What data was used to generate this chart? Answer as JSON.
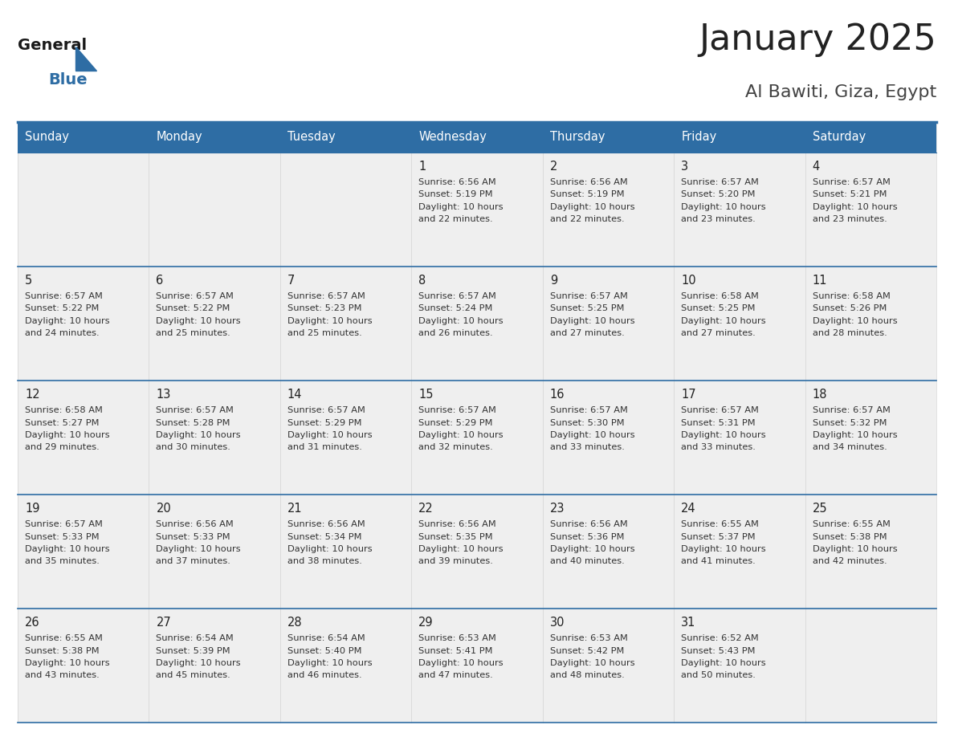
{
  "title": "January 2025",
  "subtitle": "Al Bawiti, Giza, Egypt",
  "header_bg_color": "#2E6DA4",
  "header_text_color": "#FFFFFF",
  "cell_bg_color": "#EFEFEF",
  "title_color": "#222222",
  "subtitle_color": "#444444",
  "day_names": [
    "Sunday",
    "Monday",
    "Tuesday",
    "Wednesday",
    "Thursday",
    "Friday",
    "Saturday"
  ],
  "days": [
    {
      "day": 1,
      "col": 3,
      "row": 0,
      "sunrise": "6:56 AM",
      "sunset": "5:19 PM",
      "daylight": "10 hours and 22 minutes."
    },
    {
      "day": 2,
      "col": 4,
      "row": 0,
      "sunrise": "6:56 AM",
      "sunset": "5:19 PM",
      "daylight": "10 hours and 22 minutes."
    },
    {
      "day": 3,
      "col": 5,
      "row": 0,
      "sunrise": "6:57 AM",
      "sunset": "5:20 PM",
      "daylight": "10 hours and 23 minutes."
    },
    {
      "day": 4,
      "col": 6,
      "row": 0,
      "sunrise": "6:57 AM",
      "sunset": "5:21 PM",
      "daylight": "10 hours and 23 minutes."
    },
    {
      "day": 5,
      "col": 0,
      "row": 1,
      "sunrise": "6:57 AM",
      "sunset": "5:22 PM",
      "daylight": "10 hours and 24 minutes."
    },
    {
      "day": 6,
      "col": 1,
      "row": 1,
      "sunrise": "6:57 AM",
      "sunset": "5:22 PM",
      "daylight": "10 hours and 25 minutes."
    },
    {
      "day": 7,
      "col": 2,
      "row": 1,
      "sunrise": "6:57 AM",
      "sunset": "5:23 PM",
      "daylight": "10 hours and 25 minutes."
    },
    {
      "day": 8,
      "col": 3,
      "row": 1,
      "sunrise": "6:57 AM",
      "sunset": "5:24 PM",
      "daylight": "10 hours and 26 minutes."
    },
    {
      "day": 9,
      "col": 4,
      "row": 1,
      "sunrise": "6:57 AM",
      "sunset": "5:25 PM",
      "daylight": "10 hours and 27 minutes."
    },
    {
      "day": 10,
      "col": 5,
      "row": 1,
      "sunrise": "6:58 AM",
      "sunset": "5:25 PM",
      "daylight": "10 hours and 27 minutes."
    },
    {
      "day": 11,
      "col": 6,
      "row": 1,
      "sunrise": "6:58 AM",
      "sunset": "5:26 PM",
      "daylight": "10 hours and 28 minutes."
    },
    {
      "day": 12,
      "col": 0,
      "row": 2,
      "sunrise": "6:58 AM",
      "sunset": "5:27 PM",
      "daylight": "10 hours and 29 minutes."
    },
    {
      "day": 13,
      "col": 1,
      "row": 2,
      "sunrise": "6:57 AM",
      "sunset": "5:28 PM",
      "daylight": "10 hours and 30 minutes."
    },
    {
      "day": 14,
      "col": 2,
      "row": 2,
      "sunrise": "6:57 AM",
      "sunset": "5:29 PM",
      "daylight": "10 hours and 31 minutes."
    },
    {
      "day": 15,
      "col": 3,
      "row": 2,
      "sunrise": "6:57 AM",
      "sunset": "5:29 PM",
      "daylight": "10 hours and 32 minutes."
    },
    {
      "day": 16,
      "col": 4,
      "row": 2,
      "sunrise": "6:57 AM",
      "sunset": "5:30 PM",
      "daylight": "10 hours and 33 minutes."
    },
    {
      "day": 17,
      "col": 5,
      "row": 2,
      "sunrise": "6:57 AM",
      "sunset": "5:31 PM",
      "daylight": "10 hours and 33 minutes."
    },
    {
      "day": 18,
      "col": 6,
      "row": 2,
      "sunrise": "6:57 AM",
      "sunset": "5:32 PM",
      "daylight": "10 hours and 34 minutes."
    },
    {
      "day": 19,
      "col": 0,
      "row": 3,
      "sunrise": "6:57 AM",
      "sunset": "5:33 PM",
      "daylight": "10 hours and 35 minutes."
    },
    {
      "day": 20,
      "col": 1,
      "row": 3,
      "sunrise": "6:56 AM",
      "sunset": "5:33 PM",
      "daylight": "10 hours and 37 minutes."
    },
    {
      "day": 21,
      "col": 2,
      "row": 3,
      "sunrise": "6:56 AM",
      "sunset": "5:34 PM",
      "daylight": "10 hours and 38 minutes."
    },
    {
      "day": 22,
      "col": 3,
      "row": 3,
      "sunrise": "6:56 AM",
      "sunset": "5:35 PM",
      "daylight": "10 hours and 39 minutes."
    },
    {
      "day": 23,
      "col": 4,
      "row": 3,
      "sunrise": "6:56 AM",
      "sunset": "5:36 PM",
      "daylight": "10 hours and 40 minutes."
    },
    {
      "day": 24,
      "col": 5,
      "row": 3,
      "sunrise": "6:55 AM",
      "sunset": "5:37 PM",
      "daylight": "10 hours and 41 minutes."
    },
    {
      "day": 25,
      "col": 6,
      "row": 3,
      "sunrise": "6:55 AM",
      "sunset": "5:38 PM",
      "daylight": "10 hours and 42 minutes."
    },
    {
      "day": 26,
      "col": 0,
      "row": 4,
      "sunrise": "6:55 AM",
      "sunset": "5:38 PM",
      "daylight": "10 hours and 43 minutes."
    },
    {
      "day": 27,
      "col": 1,
      "row": 4,
      "sunrise": "6:54 AM",
      "sunset": "5:39 PM",
      "daylight": "10 hours and 45 minutes."
    },
    {
      "day": 28,
      "col": 2,
      "row": 4,
      "sunrise": "6:54 AM",
      "sunset": "5:40 PM",
      "daylight": "10 hours and 46 minutes."
    },
    {
      "day": 29,
      "col": 3,
      "row": 4,
      "sunrise": "6:53 AM",
      "sunset": "5:41 PM",
      "daylight": "10 hours and 47 minutes."
    },
    {
      "day": 30,
      "col": 4,
      "row": 4,
      "sunrise": "6:53 AM",
      "sunset": "5:42 PM",
      "daylight": "10 hours and 48 minutes."
    },
    {
      "day": 31,
      "col": 5,
      "row": 4,
      "sunrise": "6:52 AM",
      "sunset": "5:43 PM",
      "daylight": "10 hours and 50 minutes."
    }
  ],
  "n_rows": 5,
  "n_cols": 7,
  "line_color": "#2E6DA4",
  "text_color": "#333333",
  "day_num_color": "#222222",
  "fig_width": 11.88,
  "fig_height": 9.18
}
